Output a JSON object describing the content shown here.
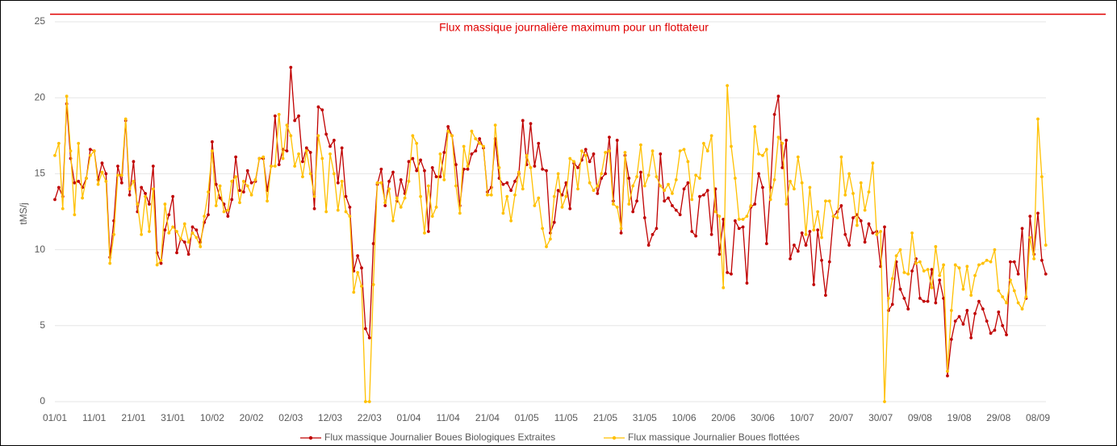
{
  "chart_data": {
    "type": "line",
    "ylabel": "tMS/j",
    "ylim": [
      0,
      25
    ],
    "yticks": [
      0,
      5,
      10,
      15,
      20,
      25
    ],
    "grid": true,
    "threshold": {
      "value": 25.5,
      "label": "Flux massique journalière maximum pour un flottateur",
      "color": "#e00000"
    },
    "legend": "bottom",
    "categories": [
      "01/01",
      null,
      null,
      null,
      null,
      null,
      null,
      null,
      null,
      null,
      "11/01",
      null,
      null,
      null,
      null,
      null,
      null,
      null,
      null,
      null,
      "21/01",
      null,
      null,
      null,
      null,
      null,
      null,
      null,
      null,
      null,
      "31/01",
      null,
      null,
      null,
      null,
      null,
      null,
      null,
      null,
      null,
      "10/02",
      null,
      null,
      null,
      null,
      null,
      null,
      null,
      null,
      null,
      "20/02",
      null,
      null,
      null,
      null,
      null,
      null,
      null,
      null,
      null,
      "02/03",
      null,
      null,
      null,
      null,
      null,
      null,
      null,
      null,
      null,
      "12/03",
      null,
      null,
      null,
      null,
      null,
      null,
      null,
      null,
      null,
      "22/03",
      null,
      null,
      null,
      null,
      null,
      null,
      null,
      null,
      null,
      "01/04",
      null,
      null,
      null,
      null,
      null,
      null,
      null,
      null,
      null,
      "11/04",
      null,
      null,
      null,
      null,
      null,
      null,
      null,
      null,
      null,
      "21/04",
      null,
      null,
      null,
      null,
      null,
      null,
      null,
      null,
      null,
      "01/05",
      null,
      null,
      null,
      null,
      null,
      null,
      null,
      null,
      null,
      "11/05",
      null,
      null,
      null,
      null,
      null,
      null,
      null,
      null,
      null,
      "21/05",
      null,
      null,
      null,
      null,
      null,
      null,
      null,
      null,
      null,
      "31/05",
      null,
      null,
      null,
      null,
      null,
      null,
      null,
      null,
      null,
      "10/06",
      null,
      null,
      null,
      null,
      null,
      null,
      null,
      null,
      null,
      "20/06",
      null,
      null,
      null,
      null,
      null,
      null,
      null,
      null,
      null,
      "30/06",
      null,
      null,
      null,
      null,
      null,
      null,
      null,
      null,
      null,
      "10/07",
      null,
      null,
      null,
      null,
      null,
      null,
      null,
      null,
      null,
      "20/07",
      null,
      null,
      null,
      null,
      null,
      null,
      null,
      null,
      null,
      "30/07",
      null,
      null,
      null,
      null,
      null,
      null,
      null,
      null,
      null,
      "09/08",
      null,
      null,
      null,
      null,
      null,
      null,
      null,
      null,
      null,
      "19/08",
      null,
      null,
      null,
      null,
      null,
      null,
      null,
      null,
      null,
      "29/08",
      null,
      null,
      null,
      null,
      null,
      null,
      null,
      null,
      null,
      "08/09",
      null,
      null
    ],
    "series": [
      {
        "name": "Flux massique Journalier Boues Biologiques Extraites",
        "color": "#c00000",
        "values": [
          13.3,
          14.1,
          13.5,
          19.6,
          16,
          14.4,
          14.5,
          14.1,
          14.7,
          16.6,
          16.5,
          14.6,
          15.7,
          15,
          9.5,
          11.9,
          15.5,
          14.4,
          18.5,
          13.6,
          15.8,
          12.5,
          14.1,
          13.7,
          13,
          15.5,
          9.8,
          9.1,
          11.3,
          12.3,
          13.5,
          9.8,
          10.7,
          10.5,
          9.7,
          11.5,
          11.3,
          10.5,
          11.8,
          12.3,
          17.1,
          14.3,
          13.4,
          13,
          12.2,
          13.3,
          16.1,
          13.9,
          13.8,
          15.2,
          14.4,
          14.5,
          16,
          16,
          13.9,
          15.5,
          18.8,
          15.6,
          16.6,
          16.5,
          22,
          18.5,
          18.8,
          15.8,
          16.7,
          16.4,
          12.7,
          19.4,
          19.2,
          17.6,
          16.8,
          17.2,
          14.4,
          16.7,
          13.5,
          12.8,
          8.6,
          9.6,
          8.8,
          4.8,
          4.2,
          10.4,
          14.3,
          15.3,
          12.9,
          14.5,
          15.1,
          13.2,
          14.6,
          13.7,
          15.8,
          16,
          15.2,
          15.9,
          15.2,
          11.2,
          15.4,
          14.8,
          14.8,
          16.4,
          18.1,
          17.5,
          15.6,
          12.9,
          15.3,
          15.3,
          16.3,
          16.5,
          17.3,
          16.7,
          13.8,
          14.1,
          17.3,
          14.7,
          14.3,
          14.4,
          13.9,
          14.5,
          15,
          18.5,
          15.6,
          18.3,
          15.5,
          17,
          15.3,
          15.2,
          11.1,
          11.8,
          13.9,
          13.6,
          14.4,
          12.7,
          15.7,
          15.4,
          15.9,
          16.6,
          15.8,
          16.3,
          13.7,
          14.7,
          15,
          17.4,
          13.2,
          17.2,
          11.1,
          16.2,
          14.7,
          12.5,
          13.2,
          15.1,
          12.1,
          10.3,
          11,
          11.4,
          16.3,
          13.2,
          13.4,
          12.9,
          12.6,
          12.3,
          14,
          14.4,
          11.2,
          10.9,
          13.5,
          13.6,
          13.9,
          11,
          14,
          9.7,
          12,
          8.5,
          8.4,
          11.9,
          11.4,
          11.5,
          7.8,
          12.8,
          13,
          15,
          14.1,
          10.4,
          14.1,
          18.9,
          20.1,
          15.4,
          17.2,
          9.4,
          10.3,
          9.9,
          11.1,
          10.3,
          11.2,
          7.7,
          11.3,
          9.3,
          7,
          9.2,
          12.2,
          12.5,
          12.9,
          11,
          10.3,
          12.1,
          12.3,
          11.9,
          10.5,
          11.7,
          11.1,
          11.2,
          8.9,
          11.5,
          6,
          6.4,
          9.2,
          7.4,
          6.8,
          6.1,
          8.6,
          9.4,
          6.8,
          6.6,
          6.6,
          8.7,
          6.5,
          8,
          6.8,
          1.7,
          4.1,
          5.3,
          5.6,
          5.1,
          6,
          4.2,
          5.8,
          6.6,
          6.1,
          5.3,
          4.5,
          4.7,
          5.9,
          5,
          4.4,
          9.2,
          9.2,
          8.4,
          11.4,
          6.8,
          12.2,
          9.7,
          12.4,
          9.3,
          8.4
        ]
      },
      {
        "name": "Flux massique Journalier Boues flottées",
        "color": "#ffc000",
        "values": [
          16.2,
          17,
          12.7,
          20.1,
          16.5,
          12.3,
          17,
          13.4,
          14.7,
          16.2,
          16.5,
          14.3,
          15.1,
          14.5,
          9.1,
          11,
          14.9,
          14.9,
          18.6,
          14,
          14.5,
          13,
          11,
          13.5,
          11.2,
          14,
          9,
          9.3,
          13,
          11.1,
          11.5,
          11.2,
          10.7,
          11.7,
          10.5,
          11.1,
          10.8,
          10.2,
          12.2,
          13.8,
          16.5,
          12.9,
          14.2,
          12.5,
          12.6,
          14.5,
          14.8,
          13.1,
          14.5,
          14.2,
          13.6,
          14.6,
          16,
          16.1,
          13.2,
          15.5,
          15.5,
          18.9,
          16,
          18.2,
          17.5,
          15.5,
          16.3,
          14.8,
          16.5,
          15,
          13.5,
          17.5,
          16,
          12.5,
          16.3,
          15,
          12.6,
          14.5,
          12.5,
          12.2,
          7.2,
          8.5,
          7.6,
          0,
          0,
          7.7,
          14.4,
          14.4,
          13.1,
          14,
          11.9,
          13.4,
          12.8,
          13.4,
          14.5,
          17.5,
          17,
          13.5,
          11.1,
          14.2,
          12.2,
          12.8,
          16.3,
          14.6,
          17.8,
          17.5,
          14.2,
          12.4,
          16.8,
          15.5,
          17.8,
          17.3,
          17,
          16.8,
          13.6,
          13.6,
          18.2,
          15.4,
          12.4,
          13.5,
          11.9,
          13.6,
          15.1,
          14,
          16.2,
          15.4,
          12.9,
          13.4,
          11.4,
          10.2,
          10.7,
          13.5,
          15,
          12.8,
          13.5,
          16,
          15.8,
          14,
          16.5,
          16.2,
          14.4,
          13.9,
          14.2,
          15,
          16.4,
          16.5,
          13,
          12.8,
          11.4,
          16.4,
          13,
          14.2,
          14.8,
          16.9,
          14.2,
          14.9,
          16.5,
          14.8,
          14.2,
          13.9,
          14.3,
          13.7,
          14.6,
          16.5,
          16.6,
          15.8,
          13.3,
          14.9,
          14.7,
          17,
          16.5,
          17.5,
          12.5,
          12.2,
          7.5,
          20.8,
          16.8,
          14.7,
          12,
          12,
          12.2,
          12.9,
          18.1,
          16.3,
          16.2,
          16.6,
          13.3,
          14.6,
          17.4,
          17,
          13,
          14.5,
          14,
          16.1,
          14.4,
          11,
          14.1,
          11.3,
          12.5,
          10.8,
          13.2,
          13.2,
          12.2,
          12.1,
          16.1,
          13.6,
          15,
          13.7,
          11.6,
          14.4,
          12.6,
          13.8,
          15.7,
          11,
          11.2,
          0,
          6.8,
          8.1,
          9.6,
          10,
          8.5,
          8.4,
          11.1,
          9.1,
          9.2,
          8.6,
          8.7,
          7.5,
          10.2,
          8.3,
          9,
          2,
          6,
          9,
          8.8,
          7.4,
          8.9,
          7,
          8.3,
          9,
          9.1,
          9.3,
          9.2,
          10,
          7.3,
          6.9,
          6.5,
          8,
          7.3,
          6.5,
          6.1,
          6.9,
          10.8,
          9.4,
          18.6,
          14.8,
          10.3
        ]
      }
    ]
  }
}
